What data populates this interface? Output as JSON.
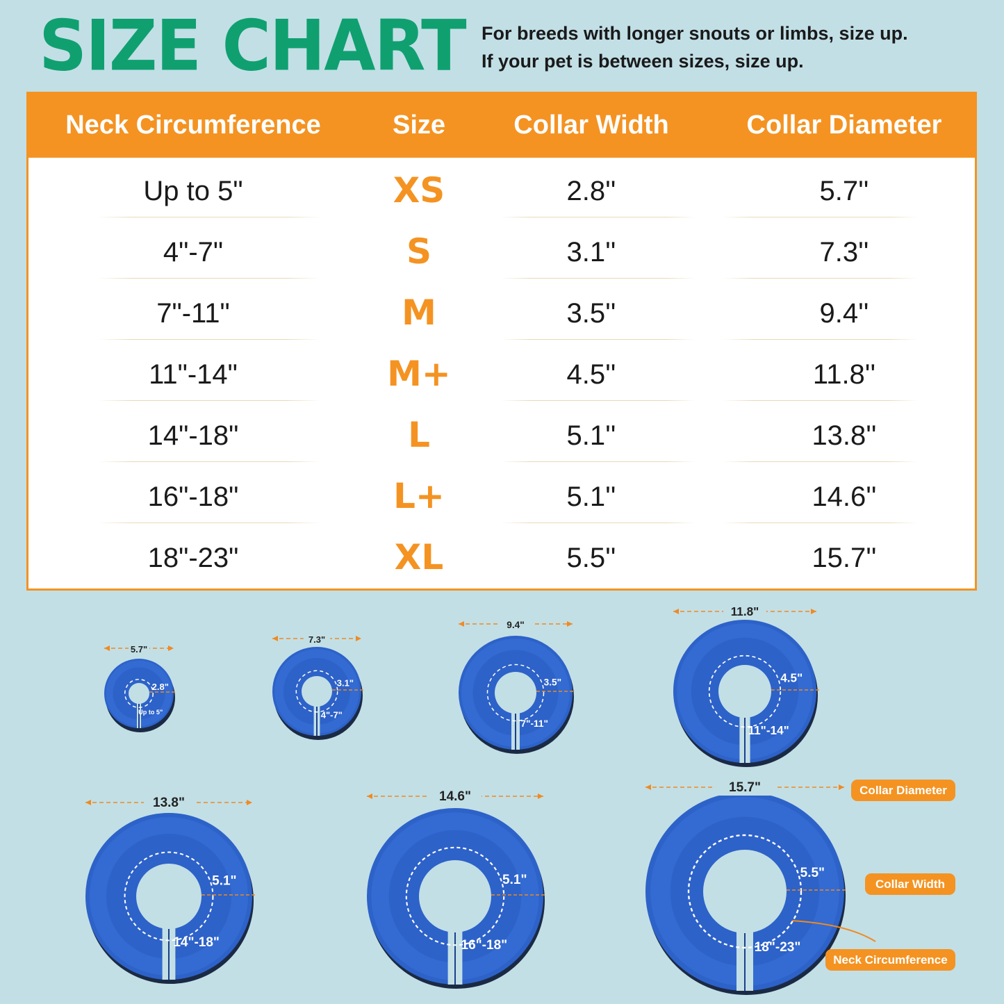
{
  "header": {
    "title": "SIZE CHART",
    "notes": [
      "For breeds with longer snouts or limbs, size up.",
      "If your pet is between sizes, size up."
    ]
  },
  "table": {
    "columns": [
      "Neck Circumference",
      "Size",
      "Collar Width",
      "Collar Diameter"
    ],
    "rows": [
      {
        "neck": "Up to 5\"",
        "size": "XS",
        "width": "2.8''",
        "diameter": "5.7''"
      },
      {
        "neck": "4\"-7\"",
        "size": "S",
        "width": "3.1''",
        "diameter": "7.3''"
      },
      {
        "neck": "7\"-11\"",
        "size": "M",
        "width": "3.5''",
        "diameter": "9.4''"
      },
      {
        "neck": "11\"-14\"",
        "size": "M+",
        "width": "4.5''",
        "diameter": "11.8''"
      },
      {
        "neck": "14\"-18\"",
        "size": "L",
        "width": "5.1''",
        "diameter": "13.8''"
      },
      {
        "neck": "16\"-18\"",
        "size": "L+",
        "width": "5.1''",
        "diameter": "14.6''"
      },
      {
        "neck": "18\"-23\"",
        "size": "XL",
        "width": "5.5''",
        "diameter": "15.7''"
      }
    ]
  },
  "collars": [
    {
      "diameter": "5.7\"",
      "width": "2.8\"",
      "neck": "Up to 5\""
    },
    {
      "diameter": "7.3\"",
      "width": "3.1\"",
      "neck": "4\"-7\""
    },
    {
      "diameter": "9.4\"",
      "width": "3.5\"",
      "neck": "7\"-11\""
    },
    {
      "diameter": "11.8\"",
      "width": "4.5\"",
      "neck": "11\"-14\""
    },
    {
      "diameter": "13.8\"",
      "width": "5.1\"",
      "neck": "14\"-18\""
    },
    {
      "diameter": "14.6\"",
      "width": "5.1\"",
      "neck": "16\"-18\""
    },
    {
      "diameter": "15.7\"",
      "width": "5.5\"",
      "neck": "18\"-23\""
    }
  ],
  "legend": {
    "diameter": "Collar Diameter",
    "width": "Collar Width",
    "neck": "Neck Circumference"
  },
  "colors": {
    "background": "#c2dfe6",
    "title": "#10a070",
    "accent": "#f49322",
    "collar": "#2d62c8"
  }
}
